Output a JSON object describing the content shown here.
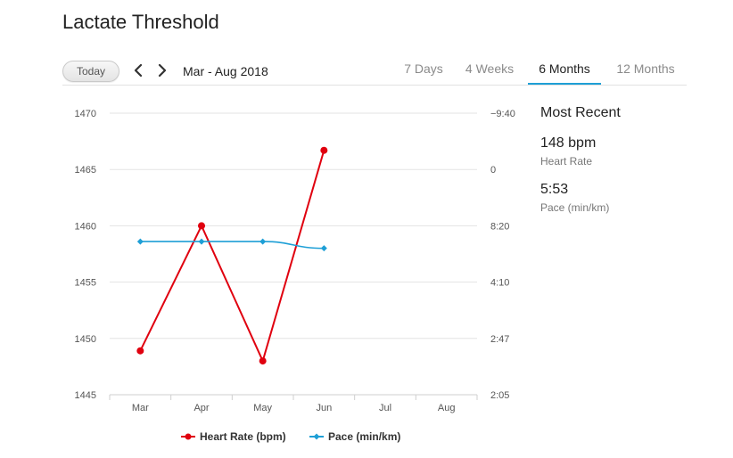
{
  "page": {
    "title": "Lactate Threshold"
  },
  "toolbar": {
    "today_label": "Today",
    "date_range": "Mar - Aug 2018"
  },
  "tabs": [
    {
      "label": "7 Days",
      "active": false
    },
    {
      "label": "4 Weeks",
      "active": false
    },
    {
      "label": "6 Months",
      "active": true
    },
    {
      "label": "12 Months",
      "active": false
    }
  ],
  "summary": {
    "heading": "Most Recent",
    "heart_rate": {
      "value": "148 bpm",
      "label": "Heart Rate"
    },
    "pace": {
      "value": "5:53",
      "label": "Pace (min/km)"
    }
  },
  "colors": {
    "heart_rate": "#e0000f",
    "pace": "#1e9fd6",
    "active_tab": "#1e9fd6"
  },
  "chart_data": {
    "type": "line",
    "categories": [
      "Mar",
      "Apr",
      "May",
      "Jun",
      "Jul",
      "Aug"
    ],
    "y_left": {
      "ticks": [
        "1470",
        "1465",
        "1460",
        "1455",
        "1450",
        "1445"
      ],
      "ylim": [
        1445,
        1470
      ]
    },
    "y_right": {
      "ticks": [
        "−9:40",
        "0",
        "8:20",
        "4:10",
        "2:47",
        "2:05"
      ]
    },
    "grid": true,
    "legend_position": "bottom",
    "series": [
      {
        "name": "Heart Rate (bpm)",
        "axis": "left",
        "marker": "circle",
        "values": [
          1448.9,
          1460.0,
          1448.0,
          1466.7,
          null,
          null
        ]
      },
      {
        "name": "Pace (min/km)",
        "axis": "left",
        "marker": "diamond",
        "values": [
          1458.6,
          1458.6,
          1458.6,
          1458.0,
          null,
          null
        ]
      }
    ]
  }
}
